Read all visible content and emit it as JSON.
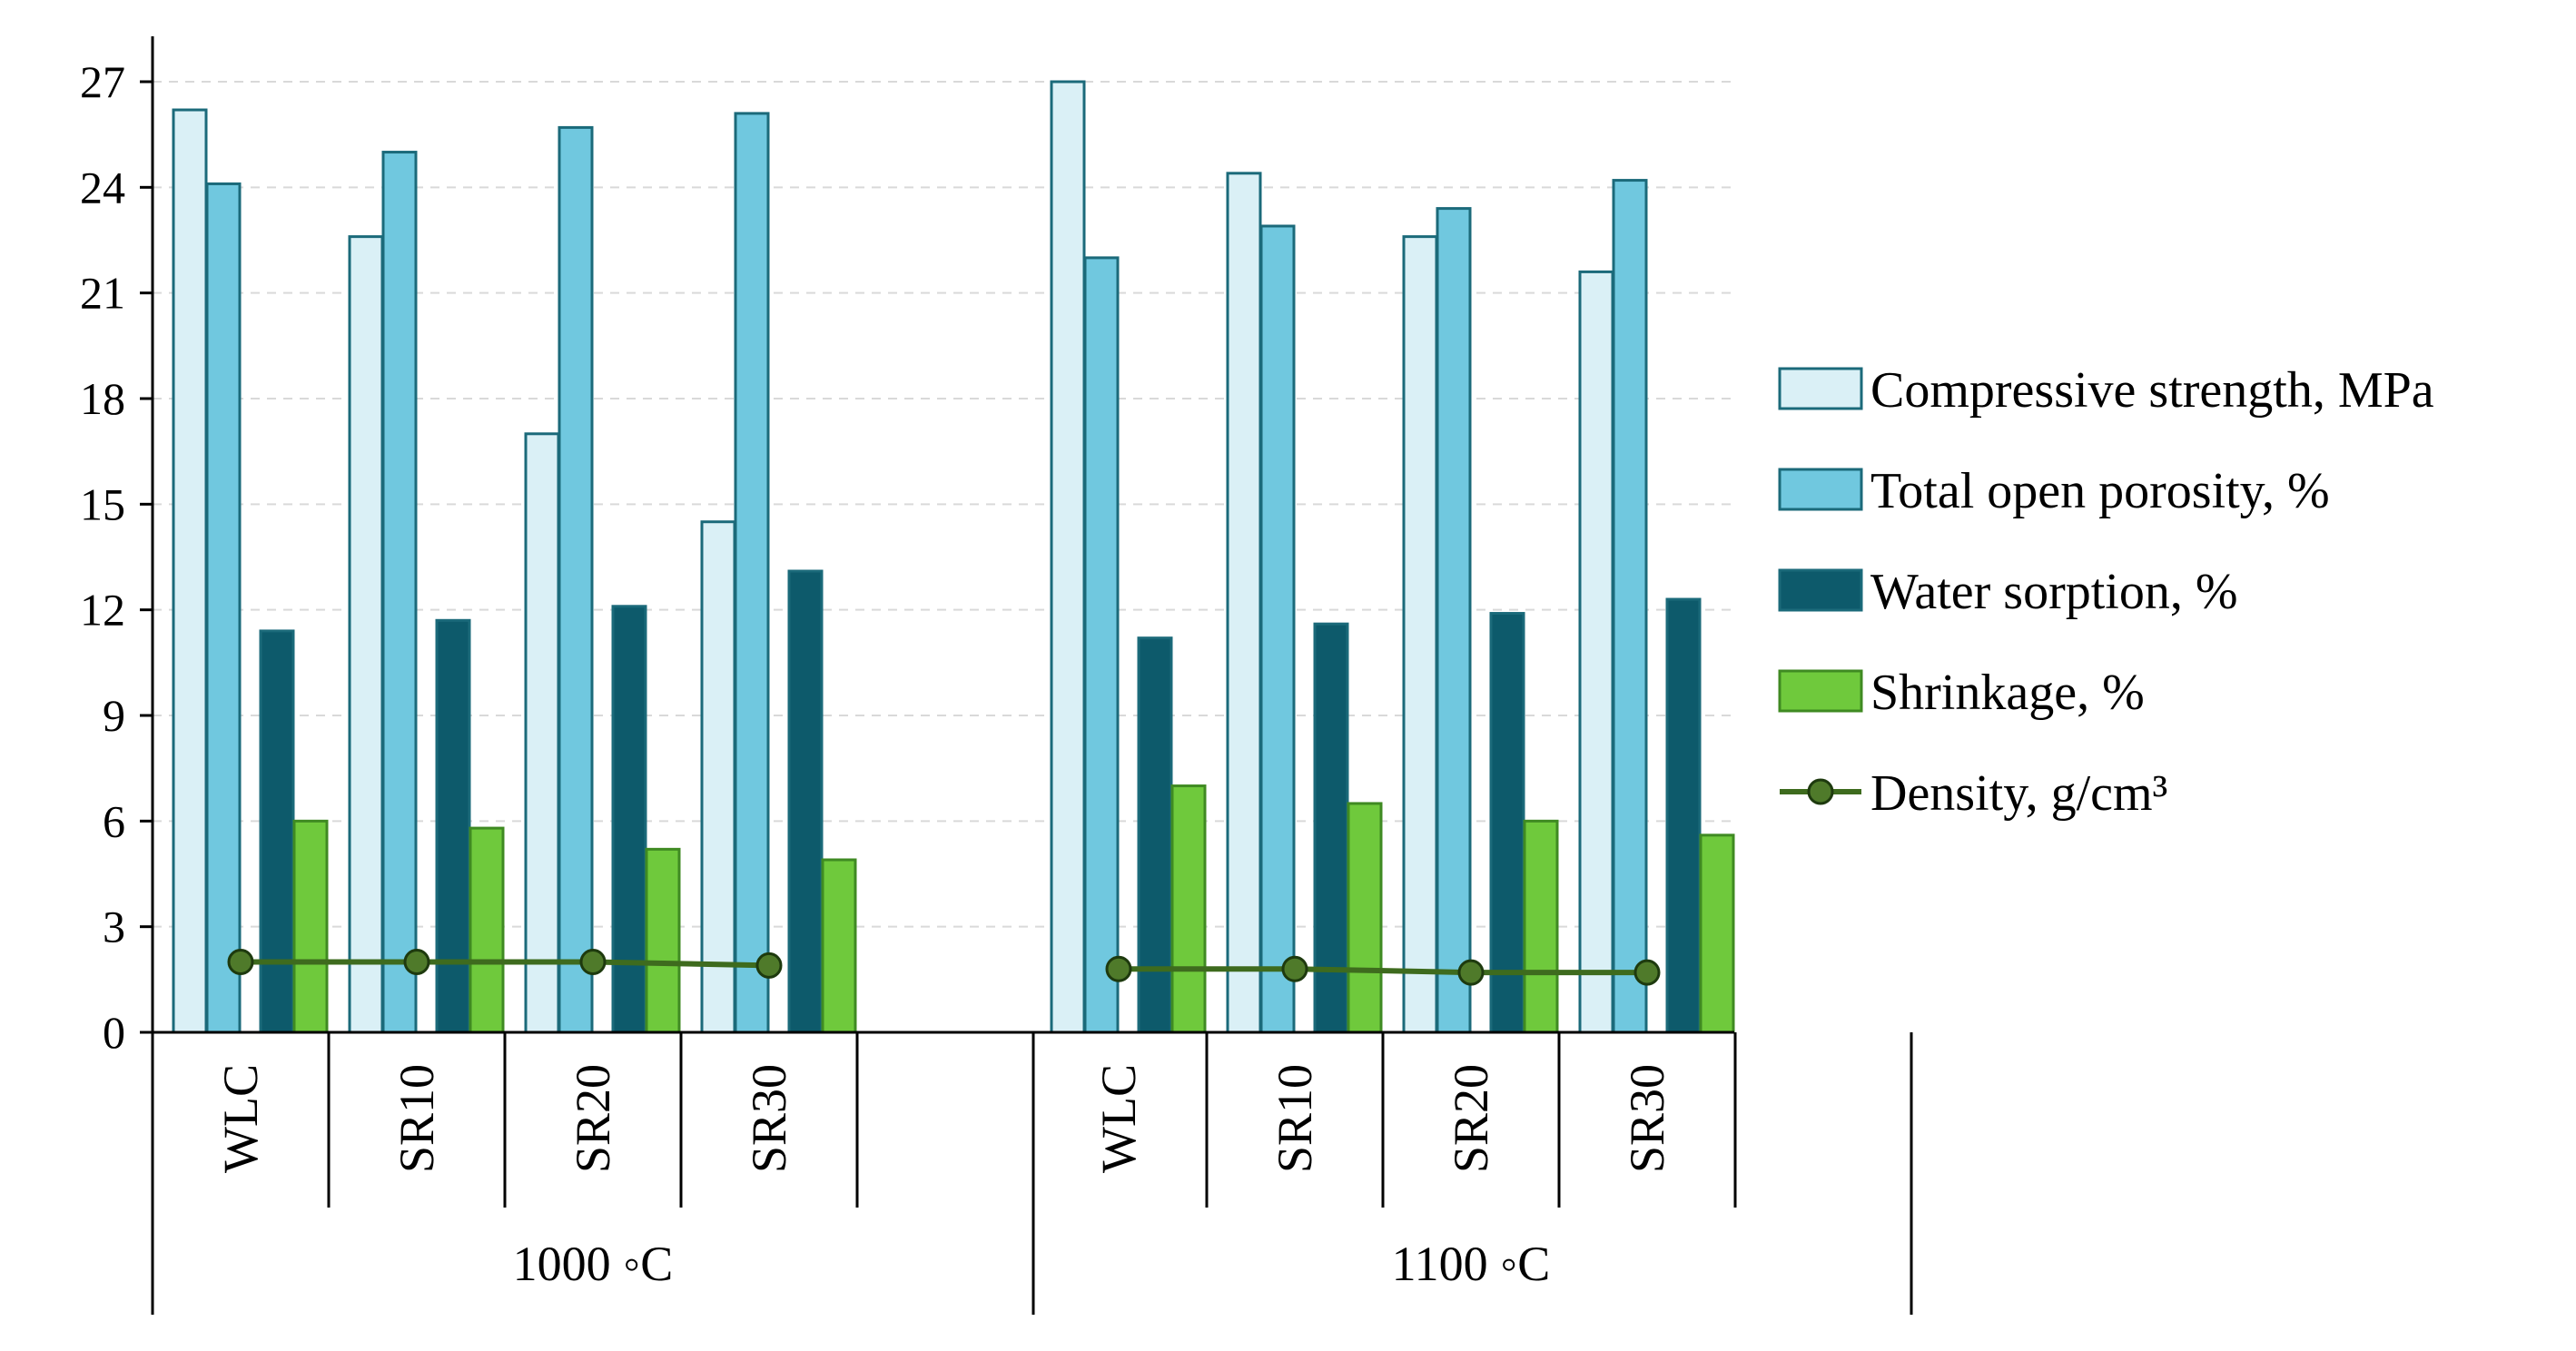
{
  "chart_data": {
    "type": "bar",
    "title": "",
    "xlabel": "",
    "ylabel": "",
    "ylim": [
      0,
      27
    ],
    "yticks": [
      0,
      3,
      6,
      9,
      12,
      15,
      18,
      21,
      24,
      27
    ],
    "grid": true,
    "legend_position": "right",
    "groups": [
      {
        "label": "1000 ◦C",
        "categories": [
          "WLC",
          "SR10",
          "SR20",
          "SR30"
        ]
      },
      {
        "label": "1100 ◦C",
        "categories": [
          "WLC",
          "SR10",
          "SR20",
          "SR30"
        ]
      }
    ],
    "series": [
      {
        "name": "Compressive strength, MPa",
        "kind": "bar",
        "color": "#DAF0F6",
        "values": [
          26.2,
          22.6,
          17.0,
          14.5,
          27.0,
          24.4,
          22.6,
          21.6
        ]
      },
      {
        "name": "Total open porosity, %",
        "kind": "bar",
        "color": "#70C8DF",
        "values": [
          24.1,
          25.0,
          25.7,
          26.1,
          22.0,
          22.9,
          23.4,
          24.2
        ]
      },
      {
        "name": "Water sorption, %",
        "kind": "bar",
        "color": "#0D5A6B",
        "values": [
          11.4,
          11.7,
          12.1,
          13.1,
          11.2,
          11.6,
          11.9,
          12.3
        ]
      },
      {
        "name": "Shrinkage, %",
        "kind": "bar",
        "color": "#6FC93C",
        "values": [
          6.0,
          5.8,
          5.2,
          4.9,
          7.0,
          6.5,
          6.0,
          5.6
        ]
      },
      {
        "name": "Density, g/cm³",
        "kind": "line",
        "color": "#3E6B1E",
        "values": [
          2.0,
          2.0,
          2.0,
          1.9,
          1.8,
          1.8,
          1.7,
          1.7
        ]
      }
    ],
    "bar_stroke": "#1B6A7A",
    "shrinkage_stroke": "#3F8A22",
    "line_marker_fill": "#4F7A2A",
    "line_marker_stroke": "#1E3A0E"
  }
}
